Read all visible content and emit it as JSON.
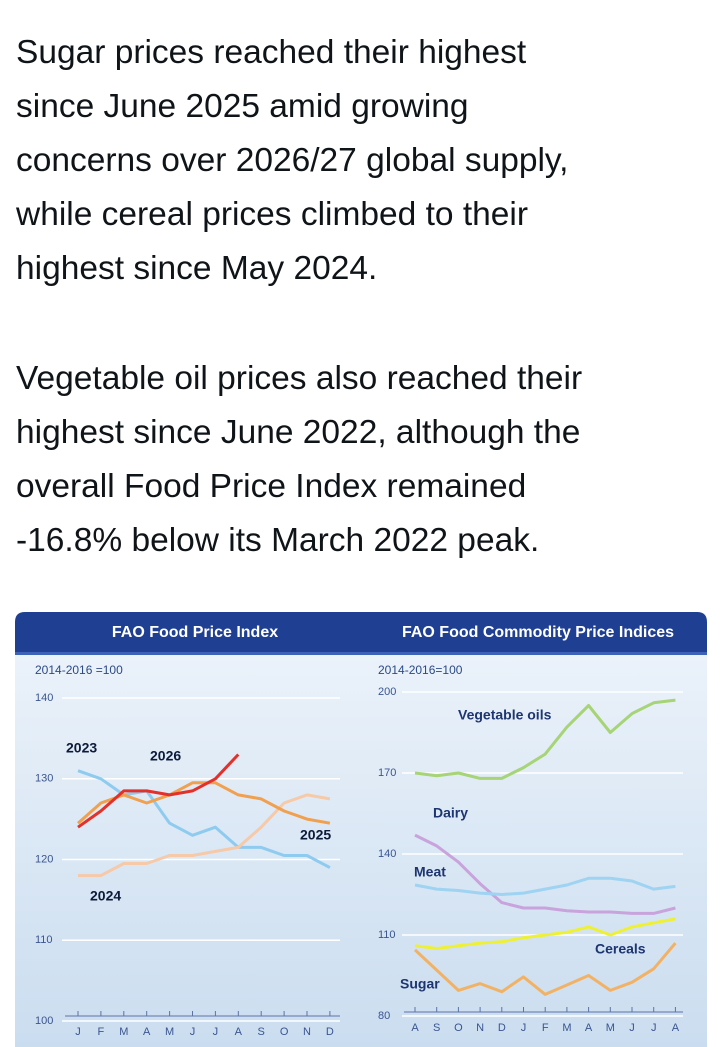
{
  "post": {
    "paragraphs": [
      [
        "Sugar prices reached their highest",
        "since June 2025 amid growing",
        "concerns over 2026/27 global supply,",
        "while cereal prices climbed to their",
        "highest since May 2024."
      ],
      [
        "Vegetable oil prices also reached their",
        "highest since June 2022, although the",
        "overall Food Price Index remained",
        "-16.8% below its March 2022 peak."
      ]
    ]
  },
  "chart_data": [
    {
      "type": "line",
      "title": "FAO Food Price Index",
      "subtitle": "2014-2016 =100",
      "categories": [
        "J",
        "F",
        "M",
        "A",
        "M",
        "J",
        "J",
        "A",
        "S",
        "O",
        "N",
        "D"
      ],
      "ylim": [
        100,
        140
      ],
      "yticks": [
        100,
        110,
        120,
        130,
        140
      ],
      "grid": true,
      "series": [
        {
          "name": "2023",
          "color": "#8ecbef",
          "values": [
            131,
            130,
            128,
            128.5,
            124.5,
            123,
            124,
            121.5,
            121.5,
            120.5,
            120.5,
            119
          ]
        },
        {
          "name": "2024",
          "color": "#f6c9a8",
          "values": [
            118,
            118,
            119.5,
            119.5,
            120.5,
            120.5,
            121,
            121.5,
            124,
            127,
            128,
            127.5
          ]
        },
        {
          "name": "2025",
          "color": "#f0a04e",
          "values": [
            124.5,
            127,
            128,
            127,
            128,
            129.5,
            129.5,
            128,
            127.5,
            126,
            125,
            124.5
          ]
        },
        {
          "name": "2026",
          "color": "#e3302b",
          "values": [
            124,
            126,
            128.5,
            128.5,
            128,
            128.5,
            130,
            133,
            null,
            null,
            null,
            null
          ]
        }
      ]
    },
    {
      "type": "line",
      "title": "FAO Food Commodity Price Indices",
      "subtitle": "2014-2016=100",
      "categories": [
        "A",
        "S",
        "O",
        "N",
        "D",
        "J",
        "F",
        "M",
        "A",
        "M",
        "J",
        "J",
        "A"
      ],
      "ylim": [
        80,
        200
      ],
      "yticks": [
        80,
        110,
        140,
        170,
        200
      ],
      "grid": true,
      "series": [
        {
          "name": "Vegetable oils",
          "color": "#a6d476",
          "values": [
            170,
            169,
            170,
            168,
            168,
            172,
            177,
            187,
            195,
            185,
            192,
            196,
            197
          ]
        },
        {
          "name": "Dairy",
          "color": "#c9a3dc",
          "values": [
            147,
            143,
            137,
            129,
            122,
            120,
            120,
            119,
            118.5,
            118.5,
            118,
            118,
            120
          ]
        },
        {
          "name": "Meat",
          "color": "#9fd3f2",
          "values": [
            128.5,
            127,
            126.5,
            125.5,
            125,
            125.5,
            127,
            128.5,
            131,
            131,
            130,
            127,
            128
          ]
        },
        {
          "name": "Cereals",
          "color": "#eef034",
          "values": [
            106,
            105,
            106,
            107,
            107.5,
            109,
            110,
            111,
            113,
            110,
            113,
            114.5,
            116
          ]
        },
        {
          "name": "Sugar",
          "color": "#f2b265",
          "values": [
            104.5,
            97,
            89.5,
            92,
            89,
            94.5,
            88,
            91.5,
            95,
            89.5,
            92.5,
            97.5,
            107
          ]
        }
      ]
    }
  ]
}
